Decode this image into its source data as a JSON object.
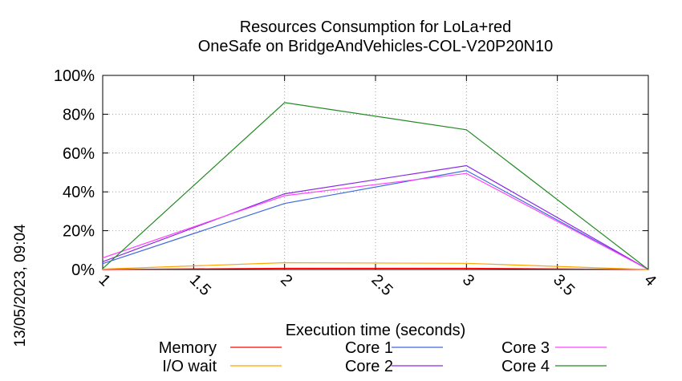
{
  "chart_data": {
    "type": "line",
    "title": "Resources Consumption for LoLa+red",
    "subtitle": "OneSafe on BridgeAndVehicles-COL-V20P20N10",
    "xlabel": "Execution time (seconds)",
    "ylabel": "",
    "side_label": "13/05/2023, 09:04",
    "xlim": [
      1,
      4
    ],
    "ylim": [
      0,
      100
    ],
    "x_ticks": [
      "1",
      "1.5",
      "2",
      "2.5",
      "3",
      "3.5",
      "4"
    ],
    "x_tick_values": [
      1,
      1.5,
      2,
      2.5,
      3,
      3.5,
      4
    ],
    "y_ticks": [
      "0%",
      "20%",
      "40%",
      "60%",
      "80%",
      "100%"
    ],
    "y_tick_values": [
      0,
      20,
      40,
      60,
      80,
      100
    ],
    "grid": true,
    "legend_position": "bottom",
    "x": [
      1,
      2,
      3,
      4
    ],
    "series": [
      {
        "name": "Memory",
        "color": "#ff0000",
        "values": [
          0,
          0.6,
          0.6,
          0
        ]
      },
      {
        "name": "I/O wait",
        "color": "#ffa500",
        "values": [
          0.2,
          3.5,
          3.2,
          0
        ]
      },
      {
        "name": "Core 1",
        "color": "#4169e1",
        "values": [
          3,
          34,
          51,
          0
        ]
      },
      {
        "name": "Core 2",
        "color": "#8a2be2",
        "values": [
          4,
          39,
          53.5,
          0
        ]
      },
      {
        "name": "Core 3",
        "color": "#ff44ff",
        "values": [
          6,
          38,
          49.5,
          0
        ]
      },
      {
        "name": "Core 4",
        "color": "#228b22",
        "values": [
          0.5,
          86,
          72,
          0
        ]
      }
    ]
  }
}
